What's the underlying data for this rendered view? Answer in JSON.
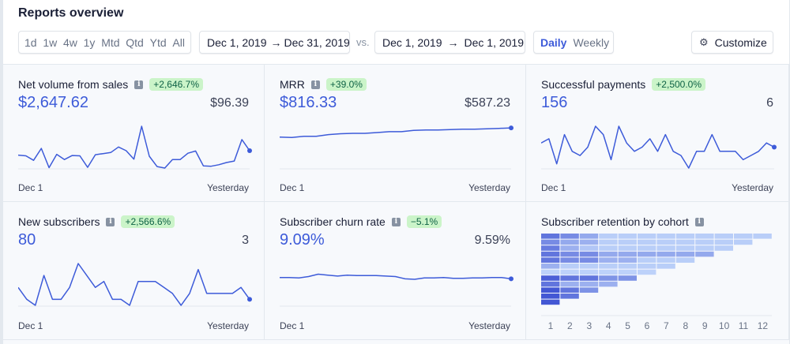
{
  "page": {
    "title": "Reports overview"
  },
  "toolbar": {
    "ranges": [
      "1d",
      "1w",
      "4w",
      "1y",
      "Mtd",
      "Qtd",
      "Ytd",
      "All"
    ],
    "date_range": {
      "start": "Dec 1, 2019",
      "arrow": "→",
      "end": "Dec 31, 2019"
    },
    "vs_label": "vs.",
    "compare_range": {
      "start": "Dec 1, 2019",
      "arrow": "→",
      "end": "Dec 1, 2019"
    },
    "interval": {
      "active": "Daily",
      "inactive": "Weekly"
    },
    "customize_label": "Customize",
    "customize_icon": "gear-icon"
  },
  "colors": {
    "accent": "#3d5bd9",
    "badge_bg": "#cbf4c9",
    "badge_text": "#0e6245",
    "tile_bg": "#f7f9fc",
    "border": "#e3e8ee"
  },
  "tiles": [
    {
      "title": "Net volume from sales",
      "has_info": true,
      "badge": "+2,646.7%",
      "primary": "$2,647.62",
      "compare": "$96.39",
      "axis_start": "Dec 1",
      "axis_end": "Yesterday",
      "series": [
        40,
        38,
        26,
        58,
        6,
        42,
        28,
        39,
        38,
        7,
        41,
        44,
        47,
        62,
        52,
        29,
        118,
        37,
        9,
        5,
        28,
        28,
        45,
        51,
        11,
        10,
        14,
        20,
        24,
        82,
        52
      ]
    },
    {
      "title": "MRR",
      "has_info": true,
      "badge": "+39.0%",
      "primary": "$816.33",
      "compare": "$587.23",
      "axis_start": "Dec 1",
      "axis_end": "Yesterday",
      "series": [
        574,
        573,
        576,
        576,
        580,
        582,
        583,
        583,
        585,
        587,
        587,
        590,
        591,
        591,
        592,
        593,
        593,
        594,
        595,
        596
      ]
    },
    {
      "title": "Successful payments",
      "has_info": false,
      "badge": "+2,500.0%",
      "primary": "156",
      "compare": "6",
      "axis_start": "Dec 1",
      "axis_end": "Yesterday",
      "series": [
        6,
        7,
        1,
        8,
        4,
        3,
        5,
        10,
        8,
        2,
        10,
        6,
        4,
        5,
        7,
        4,
        8,
        4,
        3,
        0,
        4,
        4,
        8,
        4,
        4,
        4,
        2,
        3,
        4,
        6,
        5
      ]
    },
    {
      "title": "New subscribers",
      "has_info": true,
      "badge": "+2,566.6%",
      "primary": "80",
      "compare": "3",
      "axis_start": "Dec 1",
      "axis_end": "Yesterday",
      "series": [
        3,
        1,
        0,
        5,
        1,
        1,
        3,
        7,
        5,
        3,
        4,
        1,
        1,
        0,
        4,
        4,
        4,
        3,
        2,
        0,
        2,
        6,
        2,
        2,
        2,
        2,
        3,
        1
      ]
    },
    {
      "title": "Subscriber churn rate",
      "has_info": true,
      "badge": "−5.1%",
      "primary": "9.09%",
      "compare": "9.59%",
      "axis_start": "Dec 1",
      "axis_end": "Yesterday",
      "series": [
        9.5,
        9.5,
        9.45,
        9.6,
        9.85,
        9.75,
        9.65,
        9.75,
        9.7,
        9.7,
        9.7,
        9.65,
        9.6,
        9.35,
        9.3,
        9.45,
        9.45,
        9.5,
        9.4,
        9.4,
        9.45,
        9.45,
        9.5,
        9.5,
        9.35
      ]
    }
  ],
  "cohort": {
    "title": "Subscriber retention by cohort",
    "has_info": true,
    "columns": [
      "1",
      "2",
      "3",
      "4",
      "5",
      "6",
      "7",
      "8",
      "9",
      "10",
      "11",
      "12"
    ],
    "rows": [
      [
        0.75,
        0.6,
        0.4,
        0.15,
        0.15,
        0.15,
        0.15,
        0.15,
        0.15,
        0.15,
        0.15,
        0.15
      ],
      [
        0.6,
        0.4,
        0.35,
        0.15,
        0.15,
        0.15,
        0.15,
        0.15,
        0.15,
        0.15,
        0.15
      ],
      [
        0.7,
        0.35,
        0.2,
        0.15,
        0.15,
        0.15,
        0.15,
        0.15,
        0.15,
        0.15
      ],
      [
        0.75,
        0.6,
        0.6,
        0.4,
        0.4,
        0.4,
        0.4,
        0.4,
        0.4
      ],
      [
        0.75,
        0.6,
        0.6,
        0.35,
        0.35,
        0.15,
        0.15,
        0.15
      ],
      [
        0.35,
        0.15,
        0.15,
        0.15,
        0.15,
        0.15,
        0.15
      ],
      [
        0.12,
        0.12,
        0.12,
        0.12,
        0.12,
        0.12
      ],
      [
        0.9,
        0.75,
        0.75,
        0.55,
        0.55
      ],
      [
        0.75,
        0.35,
        0.35,
        0.35
      ],
      [
        0.95,
        0.75,
        0.55
      ],
      [
        0.95,
        0.75
      ],
      [
        0.95
      ]
    ]
  }
}
